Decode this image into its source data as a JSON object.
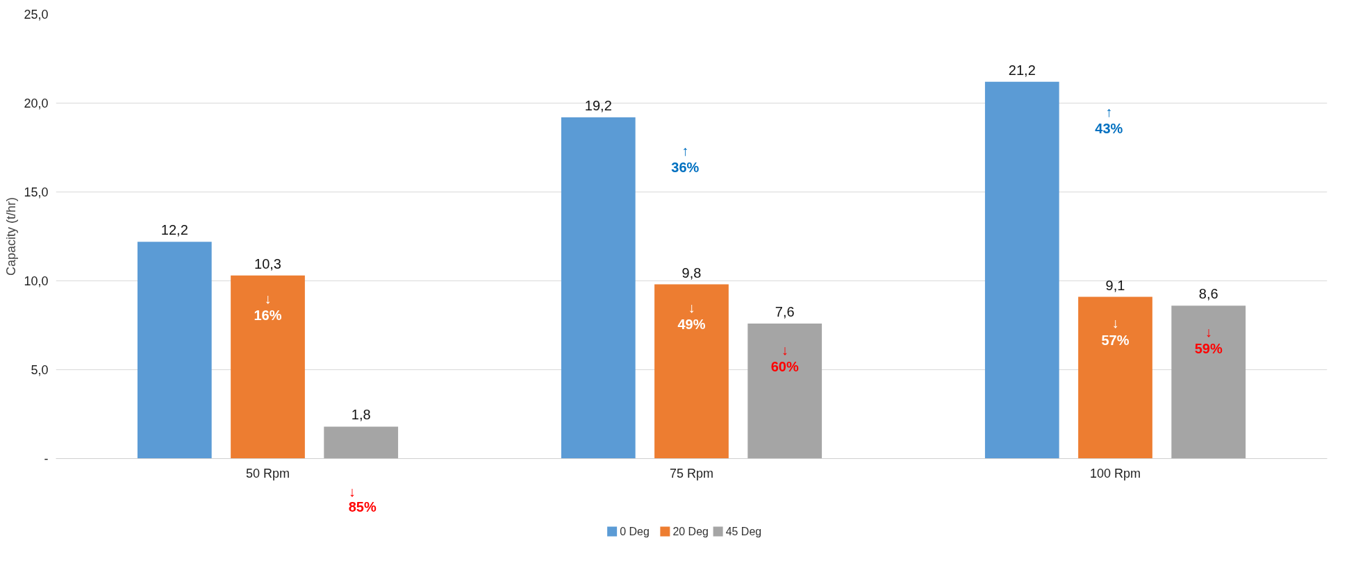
{
  "chart_data": {
    "type": "bar",
    "ylabel": "Capacity (t/hr)",
    "categories": [
      "50 Rpm",
      "75 Rpm",
      "100 Rpm"
    ],
    "series": [
      {
        "name": "0 Deg",
        "color": "#5b9bd5",
        "values": [
          12.2,
          19.2,
          21.2
        ],
        "value_labels": [
          "12,2",
          "19,2",
          "21,2"
        ]
      },
      {
        "name": "20 Deg",
        "color": "#ed7d31",
        "values": [
          10.3,
          9.8,
          9.1
        ],
        "value_labels": [
          "10,3",
          "9,8",
          "9,1"
        ]
      },
      {
        "name": "45 Deg",
        "color": "#a5a5a5",
        "values": [
          1.8,
          7.6,
          8.6
        ],
        "value_labels": [
          "1,8",
          "7,6",
          "8,6"
        ]
      }
    ],
    "ylim": [
      0,
      25
    ],
    "yticks": [
      {
        "value": 0,
        "label": "-"
      },
      {
        "value": 5,
        "label": "5,0"
      },
      {
        "value": 10,
        "label": "10,0"
      },
      {
        "value": 15,
        "label": "15,0"
      },
      {
        "value": 20,
        "label": "20,0"
      },
      {
        "value": 25,
        "label": "25,0"
      }
    ],
    "annotations": [
      "↓\n16%",
      "↓\n85%",
      "↑\n36%",
      "↓\n49%",
      "↓\n60%",
      "↑\n43%",
      "↓\n57%",
      "↓\n59%"
    ],
    "grid": "y",
    "legend": "bottom"
  }
}
